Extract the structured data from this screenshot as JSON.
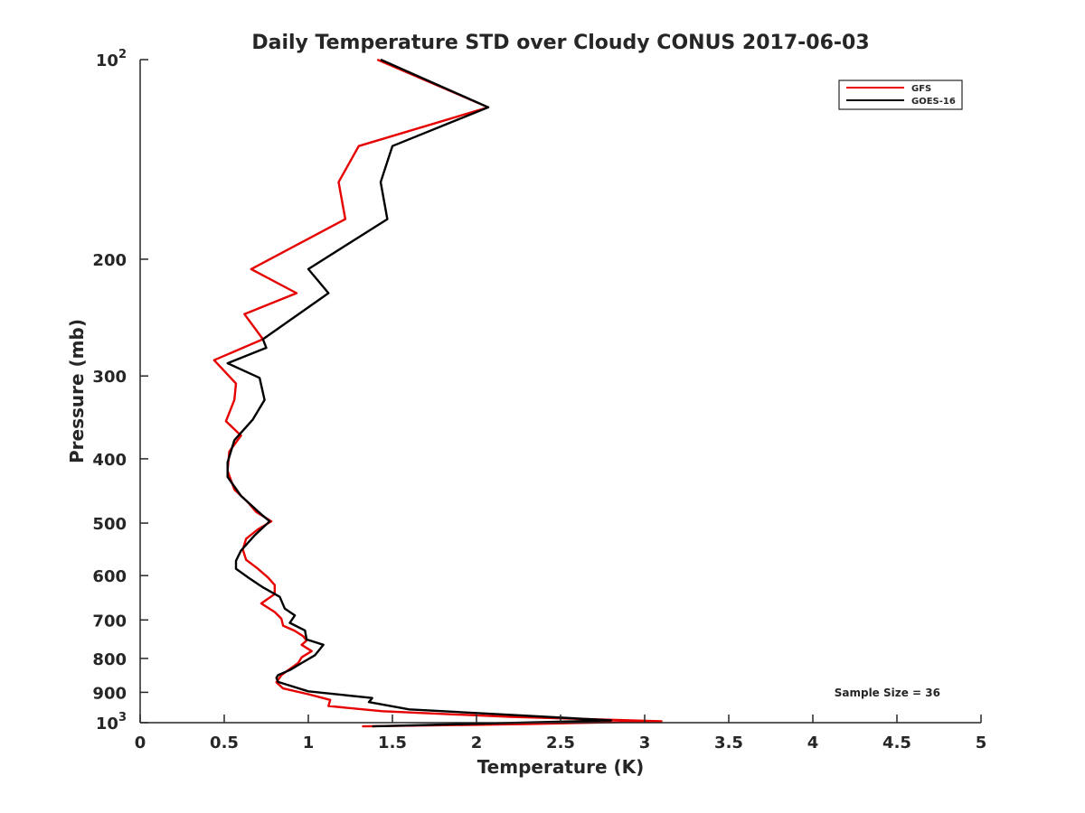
{
  "chart_data": {
    "type": "line",
    "title": "Daily Temperature STD over Cloudy CONUS 2017-06-03",
    "xlabel": "Temperature (K)",
    "ylabel": "Pressure (mb)",
    "xlim": [
      0,
      5
    ],
    "ylim": [
      100,
      1000
    ],
    "y_scale": "log",
    "y_reversed": true,
    "grid": false,
    "legend_position": "top-right",
    "x_ticks": [
      {
        "value": 0,
        "label": "0"
      },
      {
        "value": 0.5,
        "label": "0.5"
      },
      {
        "value": 1,
        "label": "1"
      },
      {
        "value": 1.5,
        "label": "1.5"
      },
      {
        "value": 2,
        "label": "2"
      },
      {
        "value": 2.5,
        "label": "2.5"
      },
      {
        "value": 3,
        "label": "3"
      },
      {
        "value": 3.5,
        "label": "3.5"
      },
      {
        "value": 4,
        "label": "4"
      },
      {
        "value": 4.5,
        "label": "4.5"
      },
      {
        "value": 5,
        "label": "5"
      }
    ],
    "y_ticks": [
      {
        "value": 100,
        "base": "10",
        "exp": "2"
      },
      {
        "value": 200,
        "label": "200"
      },
      {
        "value": 300,
        "label": "300"
      },
      {
        "value": 400,
        "label": "400"
      },
      {
        "value": 500,
        "label": "500"
      },
      {
        "value": 600,
        "label": "600"
      },
      {
        "value": 700,
        "label": "700"
      },
      {
        "value": 800,
        "label": "800"
      },
      {
        "value": 900,
        "label": "900"
      },
      {
        "value": 1000,
        "base": "10",
        "exp": "3"
      }
    ],
    "series": [
      {
        "name": "GFS",
        "color": "#e60000",
        "x": [
          1.41,
          2.07,
          1.3,
          1.18,
          1.22,
          0.66,
          0.93,
          0.62,
          0.73,
          0.44,
          0.57,
          0.56,
          0.51,
          0.6,
          0.53,
          0.52,
          0.56,
          0.64,
          0.69,
          0.78,
          0.7,
          0.63,
          0.61,
          0.63,
          0.7,
          0.76,
          0.8,
          0.8,
          0.72,
          0.8,
          0.84,
          0.85,
          0.92,
          0.97,
          0.99,
          0.96,
          1.02,
          0.96,
          0.94,
          0.88,
          0.84,
          0.81,
          0.85,
          1.0,
          1.13,
          1.12,
          1.44,
          2.2,
          3.1,
          2.3,
          1.32
        ],
        "y": [
          100,
          118,
          135,
          153,
          174,
          207,
          225,
          242,
          264,
          284,
          308,
          326,
          351,
          369,
          390,
          417,
          445,
          465,
          481,
          497,
          511,
          528,
          548,
          568,
          586,
          604,
          620,
          640,
          661,
          681,
          697,
          714,
          727,
          741,
          752,
          763,
          780,
          797,
          813,
          833,
          848,
          869,
          888,
          906,
          924,
          944,
          961,
          980,
          995,
          1005,
          1013
        ]
      },
      {
        "name": "GOES-16",
        "color": "#000000",
        "x": [
          1.43,
          2.07,
          1.5,
          1.43,
          1.47,
          1.0,
          1.12,
          0.73,
          0.75,
          0.52,
          0.71,
          0.74,
          0.67,
          0.56,
          0.52,
          0.52,
          0.6,
          0.72,
          0.77,
          0.68,
          0.6,
          0.57,
          0.57,
          0.65,
          0.73,
          0.83,
          0.86,
          0.92,
          0.89,
          0.98,
          0.99,
          1.09,
          1.04,
          0.96,
          0.89,
          0.82,
          0.81,
          0.82,
          1.0,
          1.38,
          1.36,
          1.6,
          2.8,
          1.38
        ],
        "y": [
          100,
          118,
          135,
          153,
          174,
          207,
          225,
          264,
          272,
          287,
          302,
          326,
          349,
          375,
          405,
          426,
          455,
          485,
          497,
          522,
          550,
          570,
          586,
          606,
          625,
          646,
          673,
          689,
          707,
          726,
          749,
          763,
          791,
          813,
          833,
          848,
          856,
          868,
          897,
          918,
          931,
          955,
          992,
          1013
        ]
      }
    ],
    "annotations": [
      "Sample Size = 36"
    ]
  }
}
